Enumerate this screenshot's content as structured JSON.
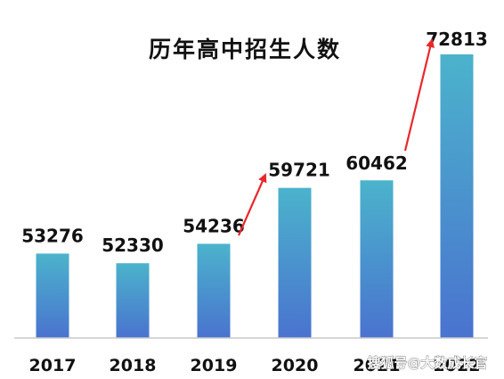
{
  "chart_data": {
    "type": "bar",
    "title": "历年高中招生人数",
    "categories": [
      "2017",
      "2018",
      "2019",
      "2020",
      "2021",
      "2022"
    ],
    "values": [
      53276,
      52330,
      54236,
      59721,
      60462,
      72813
    ],
    "data_labels": [
      "53276",
      "52330",
      "54236",
      "59721",
      "60462",
      "72813"
    ],
    "xlabel": "",
    "ylabel": "",
    "ylim": [
      45000,
      75000
    ],
    "grid": false,
    "legend": "none",
    "annotations": [
      {
        "type": "arrow",
        "from_category": "2019",
        "to_category": "2020"
      },
      {
        "type": "arrow",
        "from_category": "2021",
        "to_category": "2022"
      }
    ],
    "colors": {
      "bar_top": "#4bb3cc",
      "bar_bottom": "#4a73cf",
      "arrow": "#e8282b",
      "axis": "#c8c8c8",
      "text": "#111111"
    }
  },
  "watermark": "搜狐号@大数成长官"
}
